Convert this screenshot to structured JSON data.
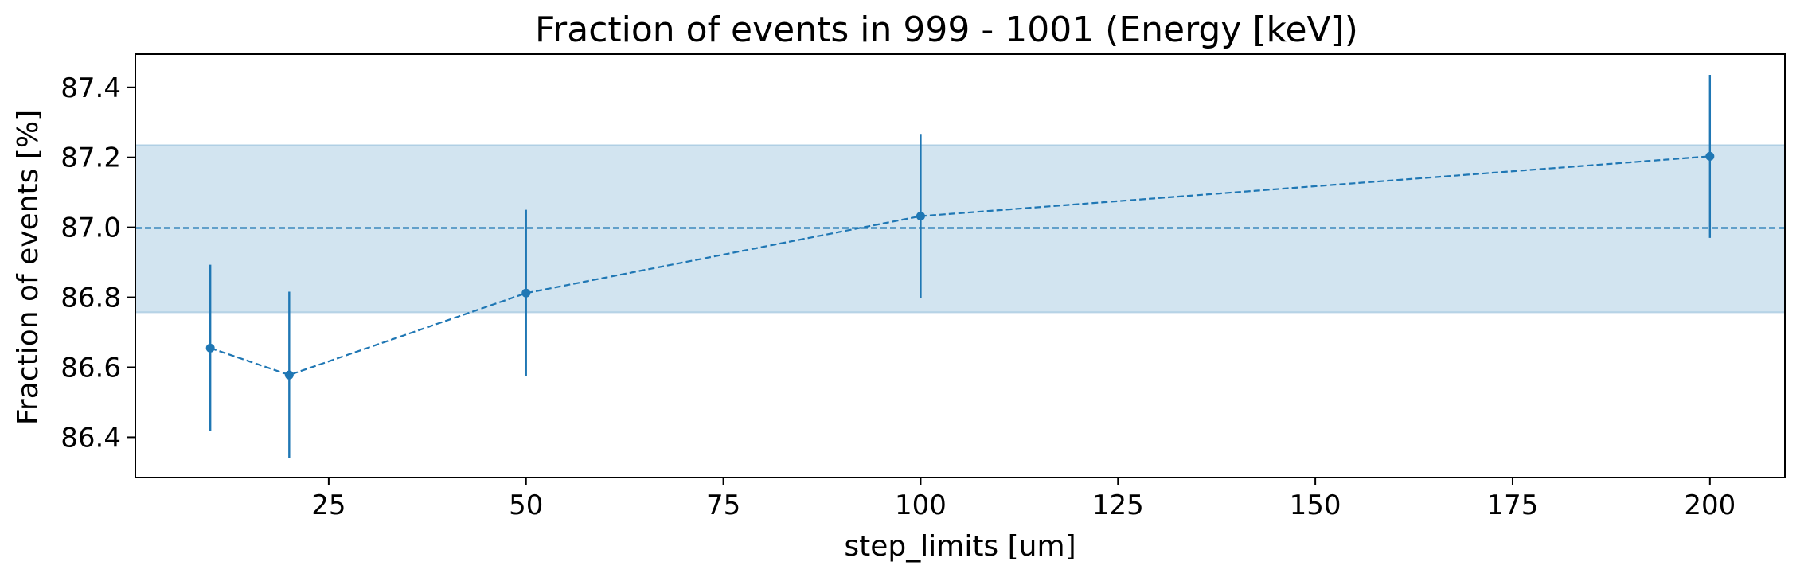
{
  "chart_data": {
    "type": "line",
    "title": "Fraction of events in 999 - 1001 (Energy [keV])",
    "xlabel": "step_limits [um]",
    "ylabel": "Fraction of events [%]",
    "xlim": [
      0.5,
      209.5
    ],
    "ylim": [
      86.285,
      87.495
    ],
    "xticks": [
      25,
      50,
      75,
      100,
      125,
      150,
      175,
      200
    ],
    "yticks": [
      86.4,
      86.6,
      86.8,
      87.0,
      87.2,
      87.4
    ],
    "ytick_labels": [
      "86.4",
      "86.6",
      "86.8",
      "87.0",
      "87.2",
      "87.4"
    ],
    "grid": false,
    "color": "#1f77b4",
    "series": [
      {
        "x": [
          10,
          20,
          50,
          100,
          200
        ],
        "y": [
          86.655,
          86.578,
          86.812,
          87.032,
          87.203
        ],
        "yerr": [
          0.238,
          0.238,
          0.238,
          0.235,
          0.233
        ],
        "line_style": "dashed",
        "marker": "circle"
      }
    ],
    "reference_line": {
      "y": 86.998,
      "style": "dashed"
    },
    "band": {
      "y_low": 86.757,
      "y_high": 87.235
    }
  }
}
